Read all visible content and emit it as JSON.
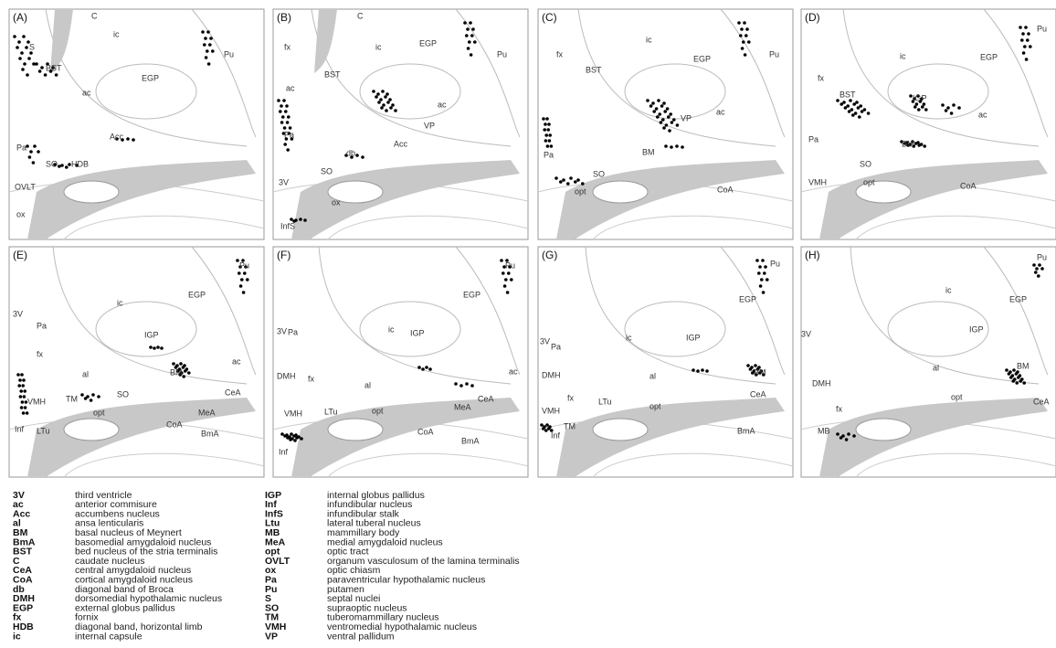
{
  "panels": [
    {
      "label": "(A)",
      "regions": [
        "S",
        "BST",
        "C",
        "ic",
        "EGP",
        "Pu",
        "ac",
        "Acc",
        "Pa",
        "SO",
        "HDB",
        "OVLT",
        "ox"
      ]
    },
    {
      "label": "(B)",
      "regions": [
        "fx",
        "C",
        "ic",
        "EGP",
        "Pu",
        "BST",
        "ac",
        "ac",
        "VP",
        "Pa",
        "db",
        "Acc",
        "SO",
        "3V",
        "ox",
        "InfS"
      ]
    },
    {
      "label": "(C)",
      "regions": [
        "fx",
        "ic",
        "EGP",
        "Pu",
        "BST",
        "ac",
        "VP",
        "Pa",
        "BM",
        "SO",
        "opt",
        "CoA"
      ]
    },
    {
      "label": "(D)",
      "regions": [
        "Pu",
        "fx",
        "ic",
        "EGP",
        "BST",
        "IGP",
        "ac",
        "Pa",
        "BM",
        "SO",
        "VMH",
        "opt",
        "CoA"
      ]
    },
    {
      "label": "(E)",
      "regions": [
        "Pu",
        "ic",
        "EGP",
        "3V",
        "Pa",
        "IGP",
        "fx",
        "al",
        "BM",
        "ac",
        "CeA",
        "VMH",
        "TM",
        "SO",
        "opt",
        "MeA",
        "CoA",
        "BmA",
        "Inf",
        "LTu"
      ]
    },
    {
      "label": "(F)",
      "regions": [
        "Pu",
        "EGP",
        "3V",
        "Pa",
        "ic",
        "IGP",
        "ac",
        "DMH",
        "fx",
        "al",
        "CeA",
        "MeA",
        "VMH",
        "LTu",
        "opt",
        "CoA",
        "BmA",
        "Inf"
      ]
    },
    {
      "label": "(G)",
      "regions": [
        "Pu",
        "EGP",
        "ic",
        "IGP",
        "3V",
        "Pa",
        "BM",
        "DMH",
        "al",
        "CeA",
        "fx",
        "LTu",
        "opt",
        "VMH",
        "TM",
        "Inf",
        "BmA"
      ]
    },
    {
      "label": "(H)",
      "regions": [
        "Pu",
        "ic",
        "EGP",
        "IGP",
        "3V",
        "al",
        "BM",
        "DMH",
        "fx",
        "opt",
        "CeA",
        "MB"
      ]
    }
  ],
  "legend": [
    {
      "abbr": "3V",
      "definition": "third ventricle"
    },
    {
      "abbr": "ac",
      "definition": "anterior commisure"
    },
    {
      "abbr": "Acc",
      "definition": "accumbens nucleus"
    },
    {
      "abbr": "al",
      "definition": "ansa lenticularis"
    },
    {
      "abbr": "BM",
      "definition": "basal nucleus of Meynert"
    },
    {
      "abbr": "BmA",
      "definition": "basomedial amygdaloid nucleus"
    },
    {
      "abbr": "BST",
      "definition": "bed nucleus of the stria terminalis"
    },
    {
      "abbr": "C",
      "definition": "caudate nucleus"
    },
    {
      "abbr": "CeA",
      "definition": "central amygdaloid nucleus"
    },
    {
      "abbr": "CoA",
      "definition": "cortical amygdaloid nucleus"
    },
    {
      "abbr": "db",
      "definition": "diagonal band of Broca"
    },
    {
      "abbr": "DMH",
      "definition": "dorsomedial hypothalamic nucleus"
    },
    {
      "abbr": "EGP",
      "definition": "external globus pallidus"
    },
    {
      "abbr": "fx",
      "definition": "fornix"
    },
    {
      "abbr": "HDB",
      "definition": "diagonal band, horizontal limb"
    },
    {
      "abbr": "ic",
      "definition": "internal capsule"
    },
    {
      "abbr": "IGP",
      "definition": "internal globus pallidus"
    },
    {
      "abbr": "Inf",
      "definition": "infundibular nucleus"
    },
    {
      "abbr": "InfS",
      "definition": "infundibular stalk"
    },
    {
      "abbr": "Ltu",
      "definition": "lateral tuberal nucleus"
    },
    {
      "abbr": "MB",
      "definition": "mammillary body"
    },
    {
      "abbr": "MeA",
      "definition": "medial amygdaloid nucleus"
    },
    {
      "abbr": "opt",
      "definition": "optic tract"
    },
    {
      "abbr": "OVLT",
      "definition": "organum vasculosum of the lamina terminalis"
    },
    {
      "abbr": "ox",
      "definition": "optic chiasm"
    },
    {
      "abbr": "Pa",
      "definition": "paraventricular hypothalamic nucleus"
    },
    {
      "abbr": "Pu",
      "definition": "putamen"
    },
    {
      "abbr": "S",
      "definition": "septal nuclei"
    },
    {
      "abbr": "SO",
      "definition": "supraoptic nucleus"
    },
    {
      "abbr": "TM",
      "definition": "tuberomammillary nucleus"
    },
    {
      "abbr": "VMH",
      "definition": "ventromedial hypothalamic nucleus"
    },
    {
      "abbr": "VP",
      "definition": "ventral pallidum"
    }
  ]
}
